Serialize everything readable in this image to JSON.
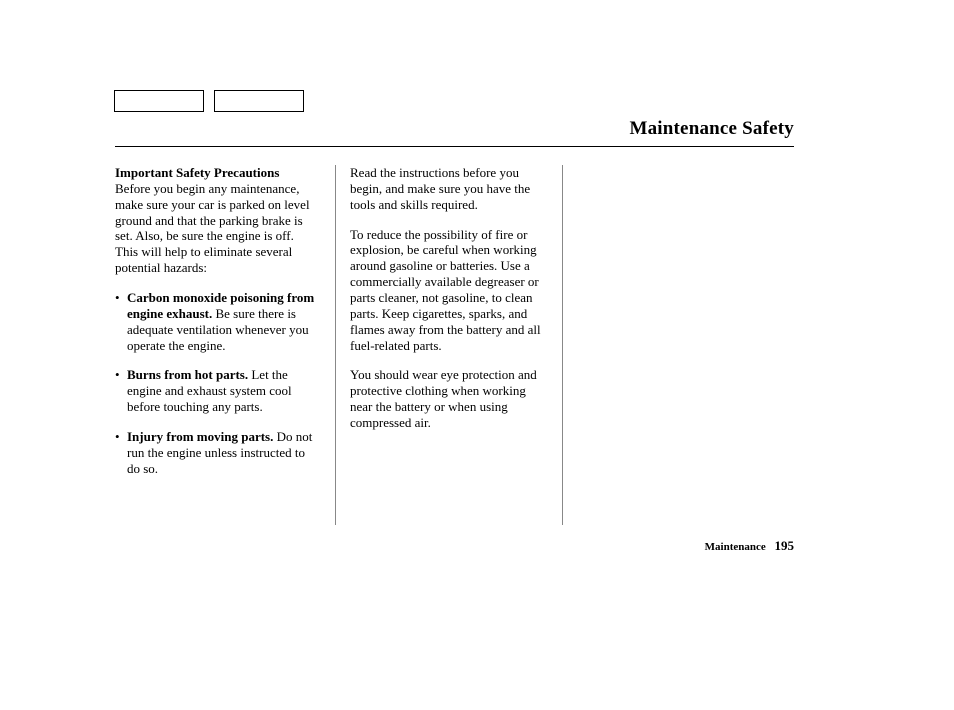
{
  "header": {
    "title": "Maintenance Safety"
  },
  "col1": {
    "subhead": "Important Safety Precautions",
    "intro": "Before you begin any maintenance, make sure your car is parked on level ground and that the parking brake is set. Also, be sure the engine is off. This will help to eliminate several potential hazards:",
    "bullets": [
      {
        "lead": "Carbon monoxide poisoning from engine exhaust.",
        "rest": " Be sure there is adequate ventilation whenever you operate the engine."
      },
      {
        "lead": "Burns from hot parts.",
        "rest": " Let the engine and exhaust system cool before touching any parts."
      },
      {
        "lead": "Injury from moving parts.",
        "rest": " Do not run the engine unless in­structed to do so."
      }
    ]
  },
  "col2": {
    "p1": "Read the instructions before you begin, and make sure you have the tools and skills required.",
    "p2": "To reduce the possibility of fire or explosion, be careful when working around gasoline or batteries. Use a commercially available degreaser or parts cleaner, not gasoline, to clean parts. Keep cigarettes, sparks, and flames away from the battery and all fuel-related parts.",
    "p3": "You should wear eye protection and protective clothing when working near the battery or when using compressed air."
  },
  "footer": {
    "section": "Maintenance",
    "page": "195"
  }
}
